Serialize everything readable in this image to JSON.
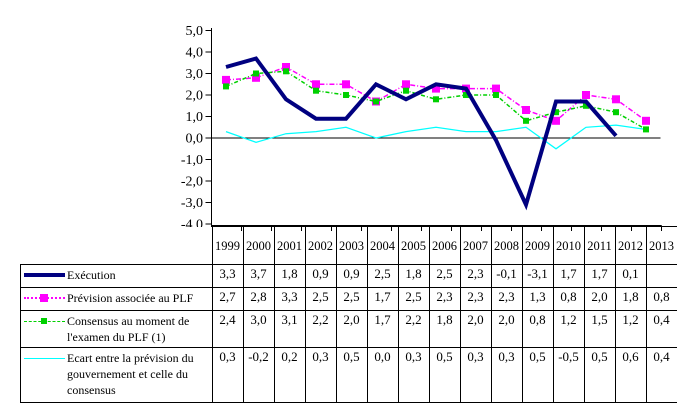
{
  "chart_data": {
    "type": "line",
    "title": "",
    "xlabel": "",
    "ylabel": "",
    "x": [
      1999,
      2000,
      2001,
      2002,
      2003,
      2004,
      2005,
      2006,
      2007,
      2008,
      2009,
      2010,
      2011,
      2012,
      2013
    ],
    "ylim": [
      -4.0,
      5.0
    ],
    "ytick_step": 1.0,
    "y_tick_labels": [
      "5,0",
      "4,0",
      "3,0",
      "2,0",
      "1,0",
      "0,0",
      "-1,0",
      "-2,0",
      "-3,0",
      "-4,0"
    ],
    "grid": false,
    "legend_position": "table-left",
    "series": [
      {
        "name": "Exécution",
        "color": "#000080",
        "line_width": 4,
        "dash": "solid",
        "marker": "none",
        "marker_size": 0,
        "values": [
          3.3,
          3.7,
          1.8,
          0.9,
          0.9,
          2.5,
          1.8,
          2.5,
          2.3,
          -0.1,
          -3.1,
          1.7,
          1.7,
          0.1,
          null
        ]
      },
      {
        "name": "Prévision associée au PLF",
        "color": "#FF00FF",
        "line_width": 1.5,
        "dash": "5 2 1 2",
        "marker": "square",
        "marker_size": 8,
        "values": [
          2.7,
          2.8,
          3.3,
          2.5,
          2.5,
          1.7,
          2.5,
          2.3,
          2.3,
          2.3,
          1.3,
          0.8,
          2.0,
          1.8,
          0.8
        ]
      },
      {
        "name": "Consensus au moment de l'examen du PLF (1)",
        "color": "#00D000",
        "line_width": 1.5,
        "dash": "4 2 1 2",
        "marker": "square",
        "marker_size": 6,
        "values": [
          2.4,
          3.0,
          3.1,
          2.2,
          2.0,
          1.7,
          2.2,
          1.8,
          2.0,
          2.0,
          0.8,
          1.2,
          1.5,
          1.2,
          0.4
        ]
      },
      {
        "name": "Ecart entre la prévision du gouvernement et celle du consensus",
        "color": "#00FFFF",
        "line_width": 1.25,
        "dash": "solid",
        "marker": "none",
        "marker_size": 0,
        "values": [
          0.3,
          -0.2,
          0.2,
          0.3,
          0.5,
          0.0,
          0.3,
          0.5,
          0.3,
          0.3,
          0.5,
          -0.5,
          0.5,
          0.6,
          0.4
        ]
      }
    ]
  },
  "table": {
    "years": [
      "1999",
      "2000",
      "2001",
      "2002",
      "2003",
      "2004",
      "2005",
      "2006",
      "2007",
      "2008",
      "2009",
      "2010",
      "2011",
      "2012",
      "2013"
    ],
    "rows": [
      {
        "name": "execution",
        "label": "Exécution",
        "symbol": "exec",
        "values": [
          "3,3",
          "3,7",
          "1,8",
          "0,9",
          "0,9",
          "2,5",
          "1,8",
          "2,5",
          "2,3",
          "-0,1",
          "-3,1",
          "1,7",
          "1,7",
          "0,1",
          ""
        ]
      },
      {
        "name": "prevision-plf",
        "label": "Prévision associée au PLF",
        "symbol": "prevision",
        "values": [
          "2,7",
          "2,8",
          "3,3",
          "2,5",
          "2,5",
          "1,7",
          "2,5",
          "2,3",
          "2,3",
          "2,3",
          "1,3",
          "0,8",
          "2,0",
          "1,8",
          "0,8"
        ]
      },
      {
        "name": "consensus",
        "label": "Consensus au moment de l'examen du PLF (1)",
        "symbol": "consensus",
        "values": [
          "2,4",
          "3,0",
          "3,1",
          "2,2",
          "2,0",
          "1,7",
          "2,2",
          "1,8",
          "2,0",
          "2,0",
          "0,8",
          "1,2",
          "1,5",
          "1,2",
          "0,4"
        ]
      },
      {
        "name": "ecart",
        "label": "Ecart entre la prévision du gouvernement et celle du consensus",
        "symbol": "ecart",
        "values": [
          "0,3",
          "-0,2",
          "0,2",
          "0,3",
          "0,5",
          "0,0",
          "0,3",
          "0,5",
          "0,3",
          "0,3",
          "0,5",
          "-0,5",
          "0,5",
          "0,6",
          "0,4"
        ]
      }
    ]
  }
}
